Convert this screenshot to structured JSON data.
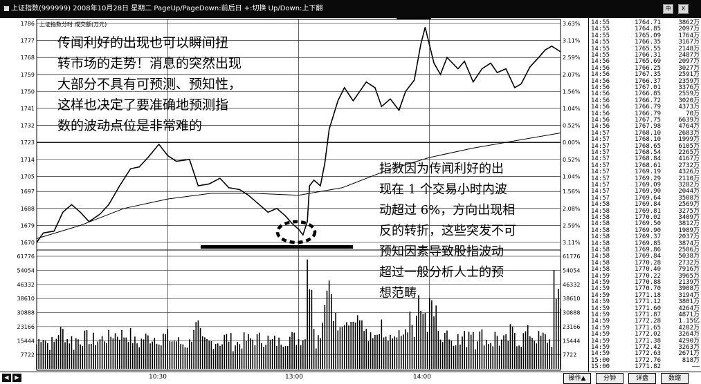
{
  "window": {
    "title": "上证指数(999999) 2008年10月28日 星期二 PageUp/PageDown:前后日 +:切换 Up/Down:上下翻",
    "buttons": [
      "中",
      "X"
    ]
  },
  "panel": {
    "index_name": "上证指数",
    "mode_label": "分时",
    "volume_label": "成交额(万元)"
  },
  "price_axis": {
    "left_labels": [
      "1786",
      "1777",
      "1768",
      "1759",
      "1750",
      "1741",
      "1732",
      "1723",
      "1714",
      "1705",
      "1697",
      "1688",
      "1679",
      "1670"
    ],
    "right_labels": [
      "3.63%",
      "3.11%",
      "2.59%",
      "2.07%",
      "1.56%",
      "1.04%",
      "0.52%",
      "0.00%",
      "0.52%",
      "1.04%",
      "1.56%",
      "2.08%",
      "2.59%",
      "3.11%"
    ]
  },
  "volume_axis": {
    "left_labels": [
      "61776",
      "54054",
      "46332",
      "38610",
      "30888",
      "23166",
      "15444",
      "7722"
    ],
    "right_labels": [
      "61776",
      "54054",
      "46332",
      "38610",
      "30888",
      "23166",
      "15444",
      "7722"
    ]
  },
  "time_axis": {
    "labels": [
      "10:30",
      "13:00",
      "14:00"
    ]
  },
  "tabs": [
    "操作▲",
    "分钟",
    "详盘",
    "数缩"
  ],
  "annotations": {
    "top_left": [
      "传闻利好的出现也可以瞬间扭",
      "转市场的走势！消息的突然出现",
      "大部分不具有可预测、预知性，",
      "这样也决定了要准确地预测指",
      "数的波动点位是非常难的"
    ],
    "bottom_right": [
      "指数因为传闻利好的出",
      "现在 1 个交易小时内波",
      "动超过 6%，方向出现相",
      "反的转折，这些突发不可",
      "预知因素导致股指波动",
      "超过一般分析人士的预",
      "想范畴"
    ]
  },
  "chart_data": {
    "type": "line",
    "price_range": [
      1670,
      1786
    ],
    "prev_close": 1723,
    "price_path": [
      [
        0,
        1670
      ],
      [
        3,
        1675
      ],
      [
        8,
        1676
      ],
      [
        12,
        1686
      ],
      [
        16,
        1690
      ],
      [
        20,
        1686
      ],
      [
        24,
        1681
      ],
      [
        29,
        1685
      ],
      [
        33,
        1690
      ],
      [
        38,
        1700
      ],
      [
        43,
        1709
      ],
      [
        47,
        1710
      ],
      [
        51,
        1715
      ],
      [
        56,
        1722
      ],
      [
        60,
        1716
      ],
      [
        64,
        1713
      ],
      [
        70,
        1714
      ],
      [
        74,
        1700
      ],
      [
        79,
        1701
      ],
      [
        84,
        1704
      ],
      [
        88,
        1699
      ],
      [
        93,
        1698
      ],
      [
        97,
        1695
      ],
      [
        102,
        1690
      ],
      [
        106,
        1686
      ],
      [
        110,
        1688
      ],
      [
        114,
        1684
      ],
      [
        117,
        1680
      ],
      [
        120,
        1677
      ],
      [
        122,
        1674
      ],
      [
        124,
        1681
      ],
      [
        125,
        1700
      ],
      [
        127,
        1703
      ],
      [
        130,
        1700
      ],
      [
        132,
        1712
      ],
      [
        134,
        1730
      ],
      [
        138,
        1745
      ],
      [
        141,
        1752
      ],
      [
        145,
        1745
      ],
      [
        148,
        1750
      ],
      [
        151,
        1755
      ],
      [
        155,
        1752
      ],
      [
        158,
        1742
      ],
      [
        162,
        1746
      ],
      [
        166,
        1740
      ],
      [
        169,
        1750
      ],
      [
        173,
        1756
      ],
      [
        176,
        1775
      ],
      [
        178,
        1784
      ],
      [
        182,
        1765
      ],
      [
        185,
        1759
      ],
      [
        188,
        1768
      ],
      [
        193,
        1762
      ],
      [
        196,
        1766
      ],
      [
        200,
        1755
      ],
      [
        204,
        1762
      ],
      [
        208,
        1765
      ],
      [
        211,
        1760
      ],
      [
        215,
        1762
      ],
      [
        219,
        1752
      ],
      [
        222,
        1754
      ],
      [
        226,
        1763
      ],
      [
        230,
        1768
      ],
      [
        233,
        1772
      ],
      [
        236,
        1774
      ],
      [
        240,
        1771
      ]
    ],
    "avg_path": [
      [
        0,
        1672
      ],
      [
        20,
        1679
      ],
      [
        40,
        1688
      ],
      [
        60,
        1693
      ],
      [
        80,
        1696
      ],
      [
        100,
        1696
      ],
      [
        120,
        1695
      ],
      [
        140,
        1699
      ],
      [
        160,
        1708
      ],
      [
        180,
        1715
      ],
      [
        200,
        1720
      ],
      [
        220,
        1724
      ],
      [
        240,
        1728
      ]
    ],
    "volume_max": 61776,
    "time_points": 241
  },
  "ticks": [
    [
      "14:55",
      "1764.71",
      "3862万"
    ],
    [
      "14:55",
      "1764.85",
      "2097万"
    ],
    [
      "14:55",
      "1765.09",
      "1764万"
    ],
    [
      "14:55",
      "1766.35",
      "3167万"
    ],
    [
      "14:55",
      "1765.55",
      "2148万"
    ],
    [
      "14:55",
      "1766.31",
      "2487万"
    ],
    [
      "14:56",
      "1765.69",
      "2097万"
    ],
    [
      "14:56",
      "1766.25",
      "3027万"
    ],
    [
      "14:56",
      "1767.35",
      "2591万"
    ],
    [
      "14:56",
      "1766.37",
      "2359万"
    ],
    [
      "14:56",
      "1767.01",
      "3376万"
    ],
    [
      "14:56",
      "1766.85",
      "2559万"
    ],
    [
      "14:56",
      "1766.72",
      "3020万"
    ],
    [
      "14:56",
      "1766.79",
      "4373万"
    ],
    [
      "14:56",
      "1766.79",
      "70万"
    ],
    [
      "14:56",
      "1767.75",
      "6639万"
    ],
    [
      "14:56",
      "1767.98",
      "4764万"
    ],
    [
      "14:57",
      "1768.10",
      "2683万"
    ],
    [
      "14:57",
      "1768.10",
      "1999万"
    ],
    [
      "14:57",
      "1768.65",
      "6105万"
    ],
    [
      "14:57",
      "1768.54",
      "2265万"
    ],
    [
      "14:57",
      "1768.84",
      "4167万"
    ],
    [
      "14:57",
      "1768.61",
      "2732万"
    ],
    [
      "14:57",
      "1769.19",
      "4326万"
    ],
    [
      "14:57",
      "1769.29",
      "2110万"
    ],
    [
      "14:57",
      "1769.09",
      "3282万"
    ],
    [
      "14:57",
      "1769.90",
      "2044万"
    ],
    [
      "14:57",
      "1769.64",
      "3508万"
    ],
    [
      "14:58",
      "1769.84",
      "2569万"
    ],
    [
      "14:58",
      "1769.81",
      "3275万"
    ],
    [
      "14:58",
      "1770.02",
      "3409万"
    ],
    [
      "14:58",
      "1769.50",
      "3812万"
    ],
    [
      "14:58",
      "1769.90",
      "1989万"
    ],
    [
      "14:58",
      "1769.37",
      "2037万"
    ],
    [
      "14:58",
      "1769.85",
      "3874万"
    ],
    [
      "14:58",
      "1769.86",
      "2506万"
    ],
    [
      "14:58",
      "1769.84",
      "5038万"
    ],
    [
      "14:58",
      "1770.28",
      "2732万"
    ],
    [
      "14:58",
      "1770.40",
      "7916万"
    ],
    [
      "14:59",
      "1770.22",
      "3965万"
    ],
    [
      "14:59",
      "1770.88",
      "2139万"
    ],
    [
      "14:59",
      "1770.70",
      "3908万"
    ],
    [
      "14:59",
      "1771.18",
      "3194万"
    ],
    [
      "14:59",
      "1771.12",
      "3801万"
    ],
    [
      "14:59",
      "1771.60",
      "4264万"
    ],
    [
      "14:59",
      "1771.87",
      "4871万"
    ],
    [
      "14:59",
      "1772.28",
      "1.15亿"
    ],
    [
      "14:59",
      "1771.65",
      "4202万"
    ],
    [
      "14:59",
      "1772.02",
      "3264万"
    ],
    [
      "14:59",
      "1771.38",
      "4290万"
    ],
    [
      "14:59",
      "1772.42",
      "3263万"
    ],
    [
      "14:59",
      "1772.63",
      "2671万"
    ],
    [
      "15:00",
      "1772.76",
      "818万"
    ],
    [
      "15:00",
      "1771.82",
      "——"
    ]
  ]
}
